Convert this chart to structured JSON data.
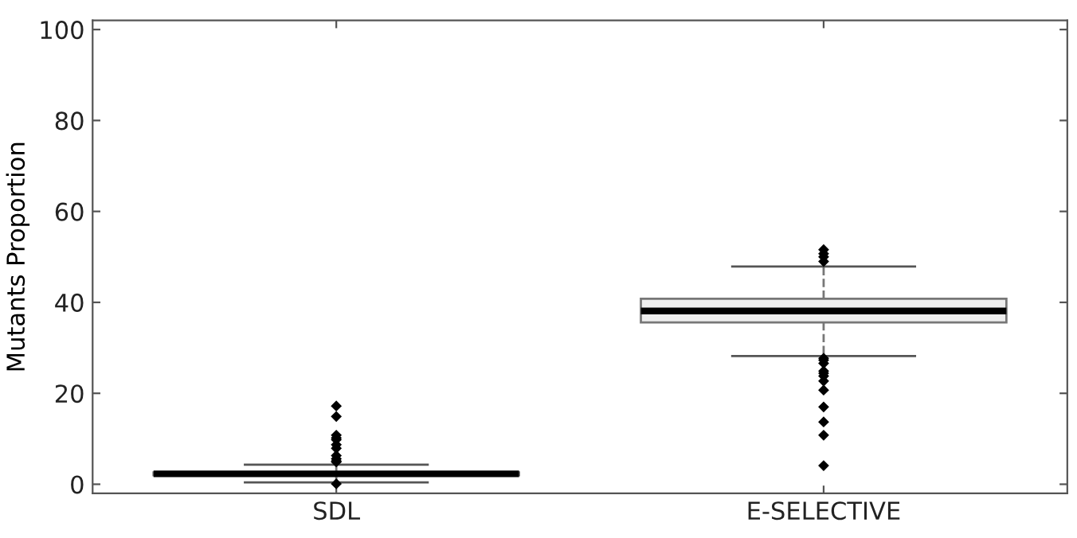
{
  "chart_data": {
    "type": "box",
    "ylabel": "Mutants Proportion",
    "categories": [
      "SDL",
      "E-SELECTIVE"
    ],
    "boxes": [
      {
        "low": 0.4,
        "q1": 2.0,
        "median": 2.3,
        "q3": 2.6,
        "high": 4.3,
        "outliers": [
          0.1,
          4.9,
          5.1,
          5.6,
          6.3,
          7.9,
          8.7,
          9.8,
          10.2,
          10.8,
          14.9,
          17.2
        ]
      },
      {
        "low": 28.2,
        "q1": 35.6,
        "median": 38.1,
        "q3": 40.8,
        "high": 47.9,
        "outliers": [
          4.1,
          10.8,
          13.7,
          17,
          20.7,
          22.7,
          23.8,
          24.4,
          24.9,
          26.6,
          27.3,
          27.7,
          49,
          50,
          50.7,
          51.6
        ]
      }
    ],
    "ylim": [
      -2,
      102
    ],
    "yticks": [
      0,
      20,
      40,
      60,
      80,
      100
    ],
    "grid": false,
    "marker": "diamond",
    "line_style": "dashed"
  }
}
